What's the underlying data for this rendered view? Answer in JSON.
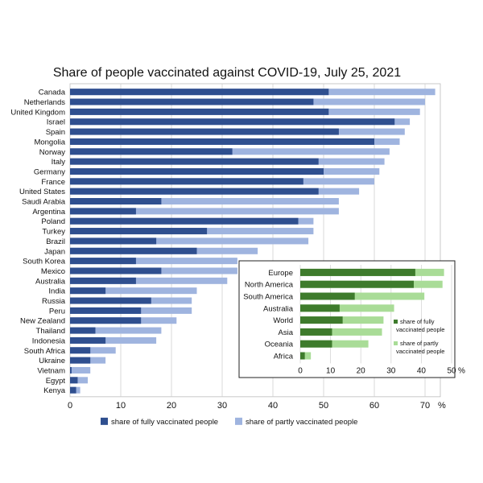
{
  "chart_data": [
    {
      "type": "bar",
      "orientation": "horizontal",
      "stacked": false,
      "title": "Share of people vaccinated against COVID-19, July 25, 2021",
      "unit": "%",
      "xlim": [
        0,
        70
      ],
      "xticks": [
        0,
        10,
        20,
        30,
        40,
        50,
        60,
        70
      ],
      "grid": true,
      "legend_position": "bottom",
      "categories": [
        "Canada",
        "Netherlands",
        "United Kingdom",
        "Israel",
        "Spain",
        "Mongolia",
        "Norway",
        "Italy",
        "Germany",
        "France",
        "United States",
        "Saudi Arabia",
        "Argentina",
        "Poland",
        "Turkey",
        "Brazil",
        "Japan",
        "South Korea",
        "Mexico",
        "Australia",
        "India",
        "Russia",
        "Peru",
        "New Zealand",
        "Thailand",
        "Indonesia",
        "South Africa",
        "Ukraine",
        "Vietnam",
        "Egypt",
        "Kenya"
      ],
      "series": [
        {
          "name": "share of fully vaccinated people",
          "color": "#2f4f8f",
          "values": [
            51,
            48,
            51,
            64,
            53,
            60,
            32,
            49,
            50,
            46,
            49,
            18,
            13,
            45,
            27,
            17,
            25,
            13,
            18,
            13,
            7,
            16,
            14,
            14,
            5,
            7,
            4,
            4,
            0.3,
            1.5,
            1.2
          ]
        },
        {
          "name": "share of partly vaccinated people",
          "color": "#9fb4df",
          "values": [
            72,
            70,
            69,
            67,
            66,
            65,
            63,
            62,
            61,
            60,
            57,
            53,
            53,
            48,
            48,
            47,
            37,
            33,
            33,
            31,
            25,
            24,
            24,
            21,
            18,
            17,
            9,
            7,
            4,
            3.5,
            2
          ]
        }
      ]
    },
    {
      "type": "bar",
      "orientation": "horizontal",
      "stacked": false,
      "inset": true,
      "unit": "%",
      "xlim": [
        0,
        50
      ],
      "xticks": [
        0,
        10,
        20,
        30,
        40,
        50
      ],
      "grid": true,
      "legend_position": "right",
      "categories": [
        "Europe",
        "North America",
        "South America",
        "Australia",
        "World",
        "Asia",
        "Oceania",
        "Africa"
      ],
      "series": [
        {
          "name": "share of fully vaccinated people",
          "color": "#3e7b2c",
          "values": [
            38,
            37.5,
            18,
            13,
            14,
            10.5,
            10.5,
            1.5
          ]
        },
        {
          "name": "share of partly vaccinated people",
          "color": "#a9dc97",
          "values": [
            47.5,
            47,
            41,
            31,
            27.5,
            27,
            22.5,
            3.5
          ]
        }
      ]
    }
  ]
}
